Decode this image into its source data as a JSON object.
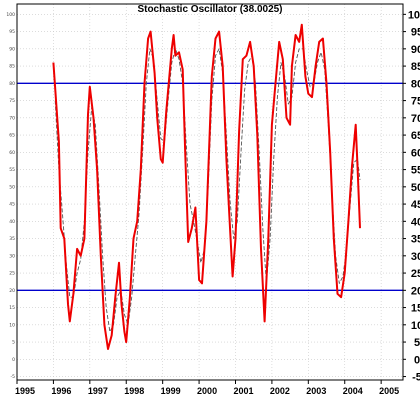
{
  "chart_data": {
    "type": "line",
    "title": "Stochastic Oscillator (38.0025)",
    "xlabel": "",
    "ylabel": "",
    "xlim": [
      1995.0,
      2005.6
    ],
    "ylim": [
      -6,
      103
    ],
    "grid": true,
    "y_ticks": [
      -5,
      0,
      5,
      10,
      15,
      20,
      25,
      30,
      35,
      40,
      45,
      50,
      55,
      60,
      65,
      70,
      75,
      80,
      85,
      90,
      95,
      100
    ],
    "x_ticks": [
      {
        "value": 1995.0,
        "label": "1995"
      },
      {
        "value": 1996.0,
        "label": "1996"
      },
      {
        "value": 1997.0,
        "label": "1997"
      },
      {
        "value": 1998.0,
        "label": "1998"
      },
      {
        "value": 1999.0,
        "label": "1999"
      },
      {
        "value": 2000.0,
        "label": "2000"
      },
      {
        "value": 2001.0,
        "label": "2001"
      },
      {
        "value": 2002.0,
        "label": "2002"
      },
      {
        "value": 2003.0,
        "label": "2003"
      },
      {
        "value": 2004.0,
        "label": "2004"
      },
      {
        "value": 2005.0,
        "label": "2005"
      }
    ],
    "reference_lines": [
      80,
      20
    ],
    "reference_color": "#0000cc",
    "series": [
      {
        "color": "#ee0000",
        "style": "solid",
        "points": [
          [
            1996.0,
            86
          ],
          [
            1996.15,
            63
          ],
          [
            1996.2,
            38
          ],
          [
            1996.3,
            35
          ],
          [
            1996.4,
            16
          ],
          [
            1996.45,
            11
          ],
          [
            1996.55,
            19
          ],
          [
            1996.65,
            32
          ],
          [
            1996.75,
            30
          ],
          [
            1996.85,
            35
          ],
          [
            1996.95,
            71
          ],
          [
            1997.0,
            79
          ],
          [
            1997.1,
            70
          ],
          [
            1997.2,
            55
          ],
          [
            1997.3,
            30
          ],
          [
            1997.4,
            10
          ],
          [
            1997.5,
            3
          ],
          [
            1997.6,
            7
          ],
          [
            1997.7,
            18
          ],
          [
            1997.8,
            28
          ],
          [
            1997.87,
            16
          ],
          [
            1997.95,
            8
          ],
          [
            1998.0,
            5
          ],
          [
            1998.1,
            18
          ],
          [
            1998.2,
            35
          ],
          [
            1998.3,
            40
          ],
          [
            1998.4,
            55
          ],
          [
            1998.5,
            80
          ],
          [
            1998.6,
            93
          ],
          [
            1998.67,
            95
          ],
          [
            1998.78,
            83
          ],
          [
            1998.85,
            70
          ],
          [
            1998.95,
            58
          ],
          [
            1999.0,
            57
          ],
          [
            1999.1,
            72
          ],
          [
            1999.25,
            90
          ],
          [
            1999.3,
            94
          ],
          [
            1999.35,
            88
          ],
          [
            1999.45,
            89
          ],
          [
            1999.55,
            84
          ],
          [
            1999.62,
            60
          ],
          [
            1999.7,
            34
          ],
          [
            1999.8,
            38
          ],
          [
            1999.9,
            44
          ],
          [
            2000.0,
            23
          ],
          [
            2000.08,
            22
          ],
          [
            2000.2,
            40
          ],
          [
            2000.35,
            82
          ],
          [
            2000.45,
            93
          ],
          [
            2000.55,
            95
          ],
          [
            2000.65,
            85
          ],
          [
            2000.75,
            58
          ],
          [
            2000.83,
            42
          ],
          [
            2000.92,
            24
          ],
          [
            2001.0,
            35
          ],
          [
            2001.1,
            66
          ],
          [
            2001.2,
            87
          ],
          [
            2001.3,
            88
          ],
          [
            2001.4,
            92
          ],
          [
            2001.5,
            85
          ],
          [
            2001.6,
            65
          ],
          [
            2001.7,
            32
          ],
          [
            2001.8,
            11
          ],
          [
            2001.9,
            35
          ],
          [
            2002.0,
            68
          ],
          [
            2002.1,
            80
          ],
          [
            2002.2,
            92
          ],
          [
            2002.3,
            87
          ],
          [
            2002.4,
            70
          ],
          [
            2002.5,
            68
          ],
          [
            2002.55,
            85
          ],
          [
            2002.65,
            94
          ],
          [
            2002.75,
            92
          ],
          [
            2002.82,
            97
          ],
          [
            2002.92,
            82
          ],
          [
            2003.0,
            77
          ],
          [
            2003.1,
            76
          ],
          [
            2003.2,
            85
          ],
          [
            2003.3,
            92
          ],
          [
            2003.4,
            93
          ],
          [
            2003.5,
            80
          ],
          [
            2003.6,
            60
          ],
          [
            2003.7,
            35
          ],
          [
            2003.8,
            19
          ],
          [
            2003.9,
            18
          ],
          [
            2004.0,
            25
          ],
          [
            2004.1,
            40
          ],
          [
            2004.2,
            56
          ],
          [
            2004.3,
            68
          ],
          [
            2004.35,
            56
          ],
          [
            2004.42,
            38
          ]
        ]
      },
      {
        "color": "#555555",
        "style": "dashed",
        "points": [
          [
            1996.05,
            75
          ],
          [
            1996.15,
            55
          ],
          [
            1996.25,
            42
          ],
          [
            1996.35,
            28
          ],
          [
            1996.45,
            18
          ],
          [
            1996.55,
            18
          ],
          [
            1996.65,
            25
          ],
          [
            1996.75,
            29
          ],
          [
            1996.85,
            40
          ],
          [
            1996.95,
            60
          ],
          [
            1997.05,
            73
          ],
          [
            1997.15,
            68
          ],
          [
            1997.25,
            50
          ],
          [
            1997.35,
            30
          ],
          [
            1997.45,
            15
          ],
          [
            1997.55,
            8
          ],
          [
            1997.65,
            10
          ],
          [
            1997.75,
            18
          ],
          [
            1997.85,
            20
          ],
          [
            1997.95,
            13
          ],
          [
            1998.05,
            10
          ],
          [
            1998.15,
            18
          ],
          [
            1998.25,
            30
          ],
          [
            1998.35,
            42
          ],
          [
            1998.45,
            60
          ],
          [
            1998.55,
            80
          ],
          [
            1998.65,
            90
          ],
          [
            1998.75,
            87
          ],
          [
            1998.85,
            75
          ],
          [
            1998.95,
            64
          ],
          [
            1999.05,
            63
          ],
          [
            1999.15,
            75
          ],
          [
            1999.25,
            86
          ],
          [
            1999.35,
            90
          ],
          [
            1999.45,
            87
          ],
          [
            1999.55,
            80
          ],
          [
            1999.65,
            62
          ],
          [
            1999.75,
            45
          ],
          [
            1999.85,
            40
          ],
          [
            1999.95,
            34
          ],
          [
            2000.05,
            28
          ],
          [
            2000.15,
            32
          ],
          [
            2000.25,
            50
          ],
          [
            2000.35,
            75
          ],
          [
            2000.45,
            88
          ],
          [
            2000.55,
            90
          ],
          [
            2000.65,
            83
          ],
          [
            2000.75,
            65
          ],
          [
            2000.85,
            46
          ],
          [
            2000.95,
            35
          ],
          [
            2001.05,
            40
          ],
          [
            2001.15,
            60
          ],
          [
            2001.25,
            78
          ],
          [
            2001.35,
            86
          ],
          [
            2001.45,
            88
          ],
          [
            2001.55,
            80
          ],
          [
            2001.65,
            60
          ],
          [
            2001.75,
            38
          ],
          [
            2001.85,
            22
          ],
          [
            2001.95,
            35
          ],
          [
            2002.05,
            58
          ],
          [
            2002.15,
            76
          ],
          [
            2002.25,
            86
          ],
          [
            2002.35,
            82
          ],
          [
            2002.45,
            74
          ],
          [
            2002.55,
            76
          ],
          [
            2002.65,
            86
          ],
          [
            2002.75,
            90
          ],
          [
            2002.85,
            90
          ],
          [
            2002.95,
            84
          ],
          [
            2003.05,
            79
          ],
          [
            2003.15,
            80
          ],
          [
            2003.25,
            86
          ],
          [
            2003.35,
            89
          ],
          [
            2003.45,
            84
          ],
          [
            2003.55,
            68
          ],
          [
            2003.65,
            48
          ],
          [
            2003.75,
            30
          ],
          [
            2003.85,
            22
          ],
          [
            2003.95,
            24
          ],
          [
            2004.05,
            32
          ],
          [
            2004.15,
            45
          ],
          [
            2004.25,
            57
          ],
          [
            2004.35,
            58
          ],
          [
            2004.42,
            52
          ]
        ]
      }
    ]
  }
}
